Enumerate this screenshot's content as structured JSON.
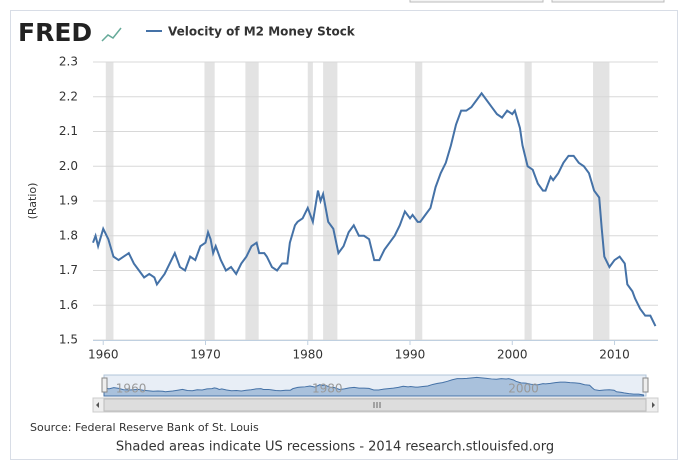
{
  "brand": "FRED",
  "chart_data": {
    "type": "line",
    "y_label": "(Ratio)",
    "source": "Source: Federal Reserve Bank of St. Louis",
    "footer": "Shaded areas indicate US recessions - 2014 research.stlouisfed.org",
    "xlim": [
      1959,
      2014.25
    ],
    "xticks": [
      1960,
      1970,
      1980,
      1990,
      2000,
      2010
    ],
    "ylim": [
      1.5,
      2.3
    ],
    "yticks": [
      1.5,
      1.6,
      1.7,
      1.8,
      1.9,
      {
        "value": 2,
        "label": "2.0"
      },
      2.1,
      2.2,
      2.3
    ],
    "grid": true,
    "recessions": [
      [
        1960.25,
        1961
      ],
      [
        1969.9,
        1970.9
      ],
      [
        1973.9,
        1975.2
      ],
      [
        1980,
        1980.5
      ],
      [
        1981.5,
        1982.9
      ],
      [
        1990.5,
        1991.2
      ],
      [
        2001.2,
        2001.9
      ],
      [
        2007.9,
        2009.5
      ]
    ],
    "recession_color": "#e3e3e3",
    "x": [
      1959,
      1959.25,
      1959.5,
      1960,
      1960.5,
      1961,
      1961.5,
      1962,
      1962.5,
      1963,
      1963.5,
      1964,
      1964.5,
      1965,
      1965.25,
      1965.5,
      1966,
      1966.5,
      1967,
      1967.5,
      1968,
      1968.5,
      1969,
      1969.5,
      1970,
      1970.25,
      1970.5,
      1970.75,
      1971,
      1971.5,
      1972,
      1972.5,
      1973,
      1973.5,
      1974,
      1974.5,
      1975,
      1975.25,
      1975.75,
      1976,
      1976.5,
      1977,
      1977.5,
      1978,
      1978.25,
      1978.75,
      1979,
      1979.5,
      1980,
      1980.5,
      1981,
      1981.25,
      1981.5,
      1982,
      1982.5,
      1983,
      1983.5,
      1984,
      1984.5,
      1985,
      1985.5,
      1986,
      1986.5,
      1987,
      1987.5,
      1988,
      1988.5,
      1989,
      1989.5,
      1990,
      1990.25,
      1990.75,
      1991,
      1991.5,
      1992,
      1992.5,
      1993,
      1993.5,
      1994,
      1994.5,
      1995,
      1995.5,
      1996,
      1996.5,
      1997,
      1997.5,
      1998,
      1998.5,
      1999,
      1999.5,
      2000,
      2000.25,
      2000.75,
      2001,
      2001.5,
      2002,
      2002.5,
      2003,
      2003.25,
      2003.75,
      2004,
      2004.5,
      2005,
      2005.5,
      2006,
      2006.5,
      2007,
      2007.5,
      2008,
      2008.5,
      2008.75,
      2009,
      2009.5,
      2010,
      2010.5,
      2011,
      2011.25,
      2011.75,
      2012,
      2012.5,
      2013,
      2013.5,
      2014
    ],
    "series": [
      {
        "name": "Velocity of M2 Money Stock",
        "color": "#4572a7",
        "values": [
          1.78,
          1.8,
          1.77,
          1.82,
          1.79,
          1.74,
          1.73,
          1.74,
          1.75,
          1.72,
          1.7,
          1.68,
          1.69,
          1.68,
          1.66,
          1.67,
          1.69,
          1.72,
          1.75,
          1.71,
          1.7,
          1.74,
          1.73,
          1.77,
          1.78,
          1.81,
          1.79,
          1.75,
          1.77,
          1.73,
          1.7,
          1.71,
          1.69,
          1.72,
          1.74,
          1.77,
          1.78,
          1.75,
          1.75,
          1.74,
          1.71,
          1.7,
          1.72,
          1.72,
          1.78,
          1.83,
          1.84,
          1.85,
          1.88,
          1.84,
          1.93,
          1.9,
          1.92,
          1.84,
          1.82,
          1.75,
          1.77,
          1.81,
          1.83,
          1.8,
          1.8,
          1.79,
          1.73,
          1.73,
          1.76,
          1.78,
          1.8,
          1.83,
          1.87,
          1.85,
          1.86,
          1.84,
          1.84,
          1.86,
          1.88,
          1.94,
          1.98,
          2.01,
          2.06,
          2.12,
          2.16,
          2.16,
          2.17,
          2.19,
          2.21,
          2.19,
          2.17,
          2.15,
          2.14,
          2.16,
          2.15,
          2.16,
          2.11,
          2.06,
          2.0,
          1.99,
          1.95,
          1.93,
          1.93,
          1.97,
          1.96,
          1.98,
          2.01,
          2.03,
          2.03,
          2.01,
          2.0,
          1.98,
          1.93,
          1.91,
          1.82,
          1.74,
          1.71,
          1.73,
          1.74,
          1.72,
          1.66,
          1.64,
          1.62,
          1.59,
          1.57,
          1.57,
          1.54
        ]
      }
    ],
    "navigator": {
      "ticks": [
        1960,
        1980,
        2000
      ]
    }
  }
}
